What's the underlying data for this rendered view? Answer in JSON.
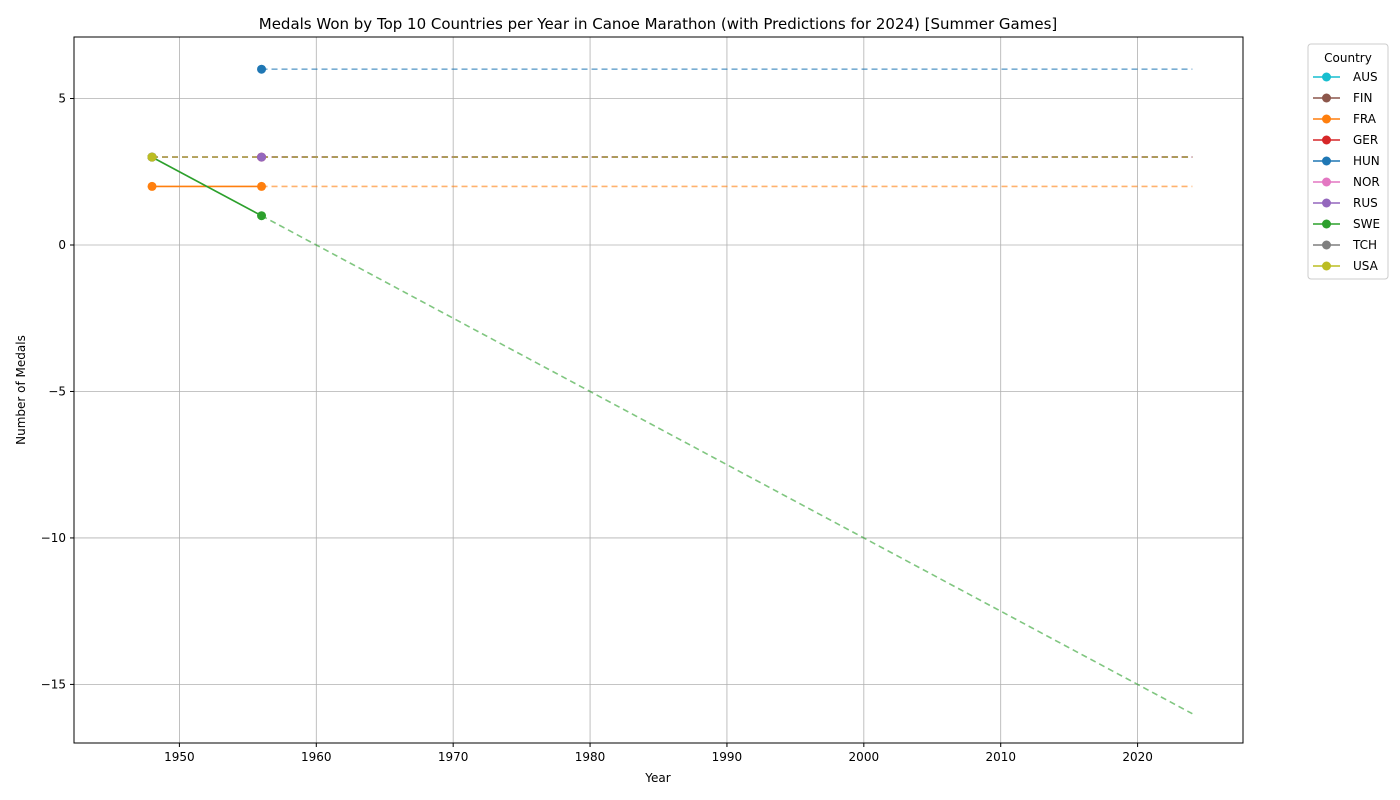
{
  "chart_data": {
    "type": "line",
    "title": "Medals Won by Top 10 Countries per Year in Canoe Marathon (with Predictions for 2024) [Summer Games]",
    "xlabel": "Year",
    "ylabel": "Number of Medals",
    "xlim": [
      1942.3,
      2027.7
    ],
    "ylim": [
      -17,
      7.1
    ],
    "xticks": [
      1950,
      1960,
      1970,
      1980,
      1990,
      2000,
      2010,
      2020
    ],
    "yticks": [
      5,
      0,
      -5,
      -10,
      -15
    ],
    "ytick_labels": [
      "5",
      "0",
      "−5",
      "−10",
      "−15"
    ],
    "grid": true,
    "legend": {
      "title": "Country",
      "placement": "outside-top-right"
    },
    "prediction_year": 2024,
    "series": [
      {
        "name": "AUS",
        "color": "#17becf",
        "points": [],
        "prediction": null
      },
      {
        "name": "FIN",
        "color": "#8c564b",
        "points": [
          [
            1948,
            3
          ]
        ],
        "prediction": [
          [
            1948,
            3
          ],
          [
            2024,
            3
          ]
        ]
      },
      {
        "name": "FRA",
        "color": "#ff7f0e",
        "points": [
          [
            1948,
            2
          ],
          [
            1956,
            2
          ]
        ],
        "prediction": [
          [
            1956,
            2
          ],
          [
            2024,
            2
          ]
        ]
      },
      {
        "name": "GER",
        "color": "#d62728",
        "points": [
          [
            1956,
            3
          ]
        ],
        "prediction": [
          [
            1956,
            3
          ],
          [
            2024,
            3
          ]
        ]
      },
      {
        "name": "HUN",
        "color": "#1f77b4",
        "points": [
          [
            1956,
            6
          ]
        ],
        "prediction": [
          [
            1956,
            6
          ],
          [
            2024,
            6
          ]
        ]
      },
      {
        "name": "NOR",
        "color": "#e377c2",
        "points": [
          [
            1948,
            3
          ]
        ],
        "prediction": [
          [
            1948,
            3
          ],
          [
            2024,
            3
          ]
        ]
      },
      {
        "name": "RUS",
        "color": "#9467bd",
        "points": [
          [
            1956,
            3
          ]
        ],
        "prediction": [
          [
            1956,
            3
          ],
          [
            2024,
            3
          ]
        ]
      },
      {
        "name": "SWE",
        "color": "#2ca02c",
        "points": [
          [
            1948,
            3
          ],
          [
            1956,
            1
          ]
        ],
        "prediction": [
          [
            1956,
            1
          ],
          [
            2024,
            -16
          ]
        ]
      },
      {
        "name": "TCH",
        "color": "#7f7f7f",
        "points": [
          [
            1948,
            3
          ]
        ],
        "prediction": [
          [
            1948,
            3
          ],
          [
            2024,
            3
          ]
        ]
      },
      {
        "name": "USA",
        "color": "#bcbd22",
        "points": [
          [
            1948,
            3
          ]
        ],
        "prediction": [
          [
            1948,
            3
          ],
          [
            2024,
            3
          ]
        ]
      }
    ]
  }
}
